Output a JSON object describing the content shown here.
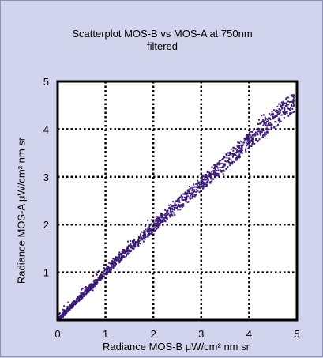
{
  "chart_data": {
    "type": "scatter",
    "title": "Scatterplot MOS-B vs MOS-A at 750nm",
    "subtitle": "filtered",
    "xlabel": "Radiance MOS-B  μW/cm² nm sr",
    "ylabel": "Radiance MOS-A  μW/cm² nm sr",
    "xlim": [
      0,
      5
    ],
    "ylim": [
      0,
      5
    ],
    "x_ticks": [
      "0",
      "1",
      "2",
      "3",
      "4",
      "5"
    ],
    "y_ticks": [
      "1",
      "2",
      "3",
      "4",
      "5"
    ],
    "grid": true,
    "legend": "none",
    "marker_color": "#3b1a78",
    "plot_background": "#ffffff",
    "background": "#d2d4ee",
    "trend": {
      "x": [
        0.0,
        0.5,
        1.0,
        1.5,
        2.0,
        2.5,
        3.0,
        3.5,
        4.0,
        4.5,
        4.9
      ],
      "y": [
        0.0,
        0.5,
        1.0,
        1.5,
        1.95,
        2.4,
        2.85,
        3.3,
        3.75,
        4.2,
        4.55
      ]
    },
    "x_range": [
      0.02,
      4.95
    ]
  }
}
